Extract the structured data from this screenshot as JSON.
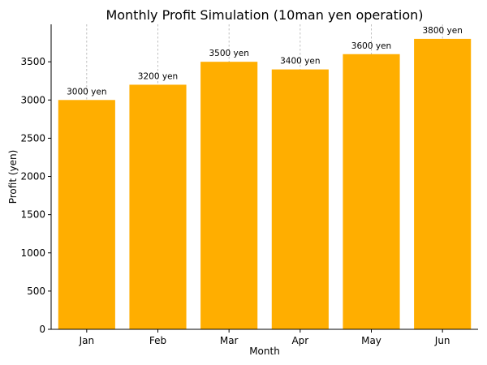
{
  "chart_data": {
    "type": "bar",
    "title": "Monthly Profit Simulation (10man yen operation)",
    "xlabel": "Month",
    "ylabel": "Profit (yen)",
    "categories": [
      "Jan",
      "Feb",
      "Mar",
      "Apr",
      "May",
      "Jun"
    ],
    "values": [
      3000,
      3200,
      3500,
      3400,
      3600,
      3800
    ],
    "data_labels": [
      "3000 yen",
      "3200 yen",
      "3500 yen",
      "3400 yen",
      "3600 yen",
      "3800 yen"
    ],
    "ylim": [
      0,
      3990
    ],
    "yticks": [
      0,
      500,
      1000,
      1500,
      2000,
      2500,
      3000,
      3500
    ],
    "grid": "vertical dashed at categories",
    "legend": "none",
    "bar_color": "#FFAE00"
  }
}
